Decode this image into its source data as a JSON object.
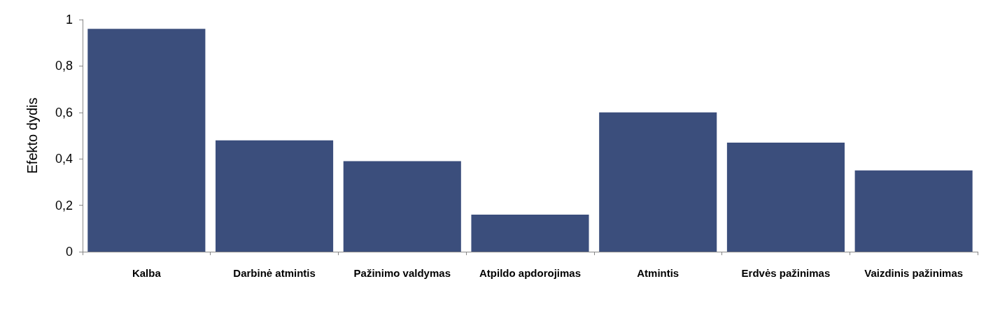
{
  "chart_data": {
    "type": "bar",
    "ylabel": "Efekto dydis",
    "categories": [
      "Kalba",
      "Darbinė atmintis",
      "Pažinimo valdymas",
      "Atpildo apdorojimas",
      "Atmintis",
      "Erdvės pažinimas",
      "Vaizdinis pažinimas"
    ],
    "values": [
      0.96,
      0.48,
      0.39,
      0.16,
      0.6,
      0.47,
      0.35
    ],
    "color": "#3b4e7c",
    "ylim": [
      0,
      1
    ],
    "yticks": [
      0,
      {
        "value": 0.2,
        "label": "0,2"
      },
      {
        "value": 0.4,
        "label": "0,4"
      },
      {
        "value": 0.6,
        "label": "0,6"
      },
      {
        "value": 0.8,
        "label": "0,8"
      },
      1
    ],
    "grid": false
  }
}
